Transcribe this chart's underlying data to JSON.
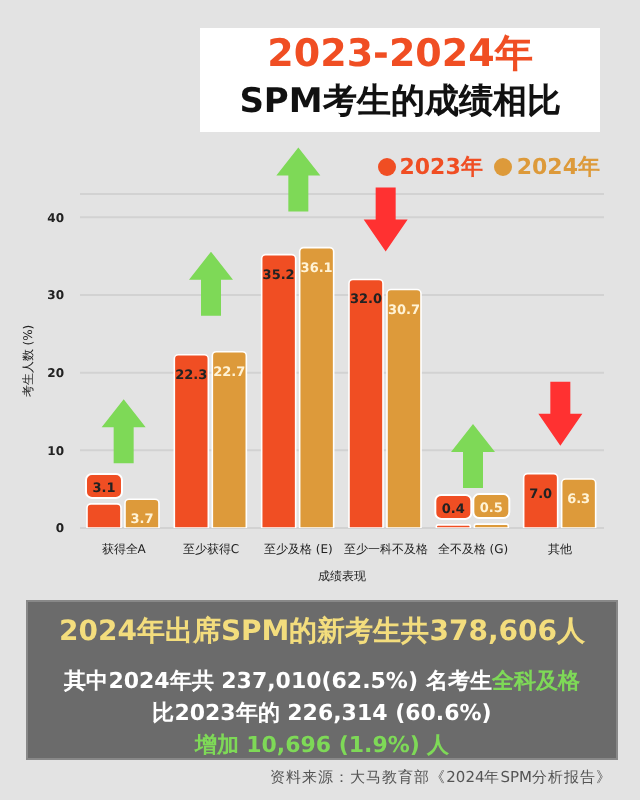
{
  "chart_data": {
    "type": "bar",
    "title": "2023-2024年",
    "subtitle": "SPM考生的成绩相比",
    "xlabel": "成绩表现",
    "ylabel": "考生人数 (%)",
    "categories": [
      "获得全A",
      "至少获得C",
      "至少及格 (E)",
      "至少一科不及格",
      "全不及格 (G)",
      "其他"
    ],
    "series": [
      {
        "name": "2023年",
        "color": "#f04e23",
        "values": [
          3.1,
          22.3,
          35.2,
          32.0,
          0.4,
          7.0
        ],
        "value_labels": [
          "3.1",
          "22.3",
          "35.2",
          "32.0",
          "0.4",
          "7.0"
        ]
      },
      {
        "name": "2024年",
        "color": "#dd9a3a",
        "values": [
          3.7,
          22.7,
          36.1,
          30.7,
          0.5,
          6.3
        ],
        "value_labels": [
          "3.7",
          "22.7",
          "36.1",
          "30.7",
          "0.5",
          "6.3"
        ]
      }
    ],
    "ylim": [
      0,
      43
    ],
    "yticks": [
      0,
      10,
      20,
      30,
      40
    ],
    "grid": "y",
    "legend": "top right",
    "annotations": [
      "2024年出席SPM的新考生共378,606人",
      "其中2024年共 237,010(62.5%) 名考生",
      "全科及格",
      "比2023年的 226,314 (60.6%)",
      "增加 10,696 (1.9%) 人",
      "资料来源：大马教育部《2024年SPM分析报告》"
    ]
  }
}
